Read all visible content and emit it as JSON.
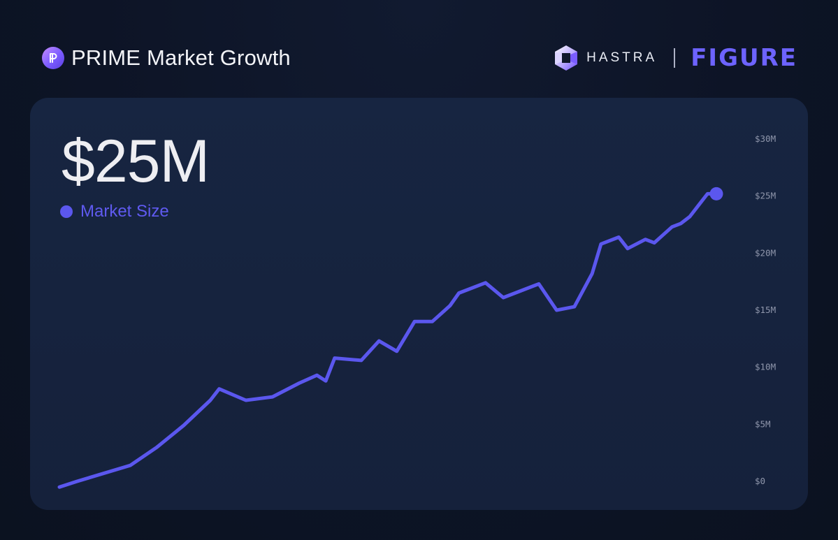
{
  "header": {
    "title": "PRIME Market Growth",
    "partner_1": "HASTRA",
    "partner_2": "FIGURE"
  },
  "summary": {
    "value": "$25M"
  },
  "colors": {
    "line": "#5b57ee",
    "accent": "#6d63ff",
    "background": "#0d1426",
    "card": "#16233f"
  },
  "chart_data": {
    "type": "line",
    "title": "",
    "xlabel": "",
    "ylabel": "",
    "ylim": [
      0,
      30
    ],
    "y_ticks": [
      0,
      5,
      10,
      15,
      20,
      25,
      30
    ],
    "y_tick_labels": [
      "$0",
      "$5M",
      "$10M",
      "$15M",
      "$20M",
      "$25M",
      "$30M"
    ],
    "grid": false,
    "legend": "top-left",
    "series": [
      {
        "name": "Market Size",
        "x": [
          0,
          2,
          8,
          11,
          14,
          17,
          18,
          21,
          24,
          27,
          29,
          30,
          31,
          34,
          36,
          38,
          40,
          42,
          44,
          45,
          48,
          50,
          54,
          56,
          58,
          60,
          61,
          63,
          64,
          66,
          67,
          68,
          69,
          70,
          71,
          72,
          73,
          74
        ],
        "values": [
          -0.5,
          0.0,
          1.4,
          3.0,
          4.9,
          7.1,
          8.1,
          7.1,
          7.4,
          8.6,
          9.3,
          8.8,
          10.8,
          10.6,
          12.3,
          11.4,
          14.0,
          14.0,
          15.4,
          16.5,
          17.4,
          16.1,
          17.3,
          15.0,
          15.3,
          18.2,
          20.8,
          21.4,
          20.4,
          21.2,
          20.9,
          21.6,
          22.3,
          22.6,
          23.2,
          24.2,
          25.2,
          25.2
        ]
      }
    ]
  }
}
